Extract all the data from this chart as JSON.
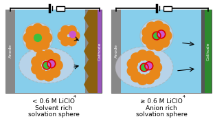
{
  "fig_width": 3.13,
  "fig_height": 1.89,
  "dpi": 100,
  "bg_color": "#ffffff",
  "cell_bg": "#87CEEB",
  "anode_color": "#888888",
  "orange_color": "#E8871A",
  "green_color": "#3dbf3d",
  "pink_color": "#cc55cc",
  "red_outline": "#dd0000",
  "text_color": "#000000",
  "label_left_line1": "< 0.6 M LiClO",
  "label_left_sub": "4",
  "label_left_line2": "Solvent rich",
  "label_left_line3": "solvation sphere",
  "label_right_line1": "≥ 0.6 M LiClO",
  "label_right_sub": "4",
  "label_right_line2": "Anion rich",
  "label_right_line3": "solvation sphere",
  "anode_label": "Anode",
  "cathode_label": "Cathode"
}
